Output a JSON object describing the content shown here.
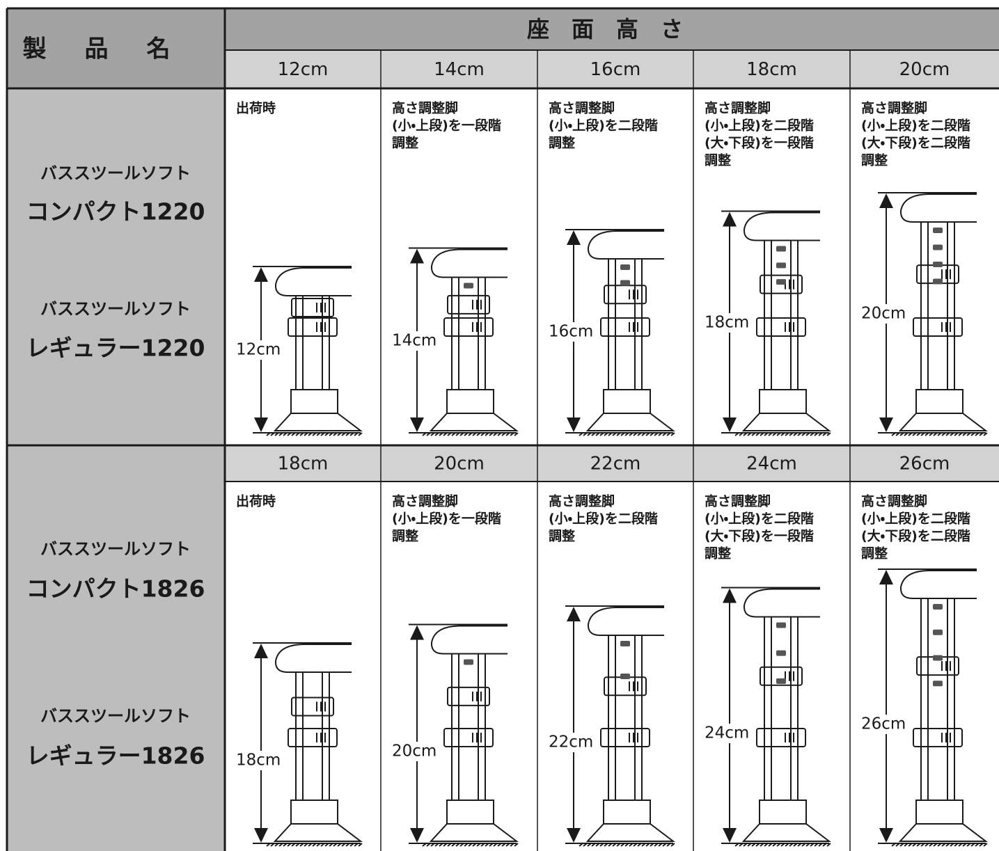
{
  "header": {
    "product_name": "製品名",
    "seat_height": "座面高さ"
  },
  "sections": [
    {
      "products": [
        {
          "series": "バススツールソフト",
          "model": "コンパクト1220"
        },
        {
          "series": "バススツールソフト",
          "model": "レギュラー1220"
        }
      ],
      "columns": [
        {
          "height": "12cm",
          "note": [
            "出荷時"
          ]
        },
        {
          "height": "14cm",
          "note": [
            "高さ調整脚",
            "(小・上段)を一段階",
            "調整"
          ]
        },
        {
          "height": "16cm",
          "note": [
            "高さ調整脚",
            "(小・上段)を二段階",
            "調整"
          ]
        },
        {
          "height": "18cm",
          "note": [
            "高さ調整脚",
            "(小・上段)を二段階",
            "(大・下段)を一段階",
            "調整"
          ]
        },
        {
          "height": "20cm",
          "note": [
            "高さ調整脚",
            "(小・上段)を二段階",
            "(大・下段)を二段階",
            "調整"
          ]
        }
      ]
    },
    {
      "products": [
        {
          "series": "バススツールソフト",
          "model": "コンパクト1826"
        },
        {
          "series": "バススツールソフト",
          "model": "レギュラー1826"
        }
      ],
      "columns": [
        {
          "height": "18cm",
          "note": [
            "出荷時"
          ]
        },
        {
          "height": "20cm",
          "note": [
            "高さ調整脚",
            "(小・上段)を一段階",
            "調整"
          ]
        },
        {
          "height": "22cm",
          "note": [
            "高さ調整脚",
            "(小・上段)を二段階",
            "調整"
          ]
        },
        {
          "height": "24cm",
          "note": [
            "高さ調整脚",
            "(小・上段)を二段階",
            "(大・下段)を一段階",
            "調整"
          ]
        },
        {
          "height": "26cm",
          "note": [
            "高さ調整脚",
            "(小・上段)を二段階",
            "(大・下段)を二段階",
            "調整"
          ]
        }
      ]
    }
  ]
}
